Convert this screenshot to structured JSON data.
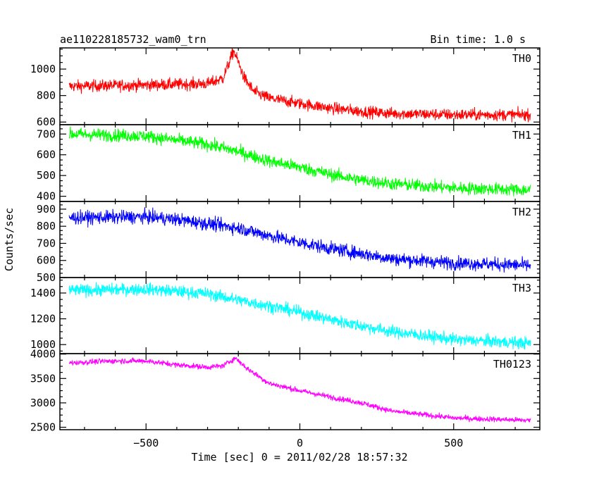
{
  "chart_data": {
    "type": "line",
    "title": "ae110228185732_wam0_trn",
    "subtitle": "Bin time: 1.0 s",
    "xlabel": "Time [sec] 0 = 2011/02/28 18:57:32",
    "ylabel": "Counts/sec",
    "xlim": [
      -780,
      780
    ],
    "x_ticks": [
      -500,
      0,
      500
    ],
    "x_tick_labels": [
      "−500",
      "0",
      "500"
    ],
    "x_range_data": [
      -750,
      750
    ],
    "grid": false,
    "panels": [
      {
        "name": "TH0",
        "color": "#ff0000",
        "ylim": [
          580,
          1160
        ],
        "y_ticks": [
          600,
          800,
          1000
        ],
        "noise": 32,
        "points": [
          [
            -750,
            870
          ],
          [
            -500,
            880
          ],
          [
            -300,
            890
          ],
          [
            -250,
            930
          ],
          [
            -215,
            1140
          ],
          [
            -180,
            930
          ],
          [
            -150,
            830
          ],
          [
            -100,
            780
          ],
          [
            0,
            740
          ],
          [
            100,
            705
          ],
          [
            200,
            680
          ],
          [
            300,
            665
          ],
          [
            500,
            655
          ],
          [
            750,
            655
          ]
        ]
      },
      {
        "name": "TH1",
        "color": "#00ff00",
        "ylim": [
          375,
          745
        ],
        "y_ticks": [
          400,
          500,
          600,
          700
        ],
        "noise": 22,
        "points": [
          [
            -750,
            700
          ],
          [
            -500,
            690
          ],
          [
            -300,
            650
          ],
          [
            -200,
            615
          ],
          [
            -100,
            570
          ],
          [
            0,
            540
          ],
          [
            100,
            505
          ],
          [
            200,
            478
          ],
          [
            300,
            460
          ],
          [
            500,
            440
          ],
          [
            750,
            430
          ]
        ]
      },
      {
        "name": "TH2",
        "color": "#0000ff",
        "ylim": [
          500,
          945
        ],
        "y_ticks": [
          500,
          600,
          700,
          800,
          900
        ],
        "noise": 28,
        "points": [
          [
            -750,
            850
          ],
          [
            -500,
            855
          ],
          [
            -400,
            840
          ],
          [
            -200,
            790
          ],
          [
            -100,
            745
          ],
          [
            0,
            705
          ],
          [
            100,
            670
          ],
          [
            200,
            640
          ],
          [
            300,
            610
          ],
          [
            500,
            585
          ],
          [
            600,
            580
          ],
          [
            750,
            570
          ]
        ]
      },
      {
        "name": "TH3",
        "color": "#00ffff",
        "ylim": [
          930,
          1520
        ],
        "y_ticks": [
          1000,
          1200,
          1400
        ],
        "noise": 34,
        "points": [
          [
            -750,
            1420
          ],
          [
            -500,
            1430
          ],
          [
            -300,
            1395
          ],
          [
            -200,
            1345
          ],
          [
            -100,
            1300
          ],
          [
            0,
            1250
          ],
          [
            100,
            1195
          ],
          [
            200,
            1145
          ],
          [
            300,
            1100
          ],
          [
            500,
            1040
          ],
          [
            750,
            1010
          ]
        ]
      },
      {
        "name": "TH0123",
        "color": "#ff00ff",
        "ylim": [
          2450,
          4010
        ],
        "y_ticks": [
          2500,
          3000,
          3500,
          4000
        ],
        "noise": 40,
        "points": [
          [
            -750,
            3820
          ],
          [
            -600,
            3860
          ],
          [
            -500,
            3860
          ],
          [
            -400,
            3780
          ],
          [
            -300,
            3730
          ],
          [
            -250,
            3760
          ],
          [
            -210,
            3920
          ],
          [
            -170,
            3700
          ],
          [
            -100,
            3400
          ],
          [
            0,
            3250
          ],
          [
            100,
            3120
          ],
          [
            200,
            3000
          ],
          [
            300,
            2830
          ],
          [
            400,
            2760
          ],
          [
            500,
            2690
          ],
          [
            750,
            2640
          ]
        ]
      }
    ]
  }
}
